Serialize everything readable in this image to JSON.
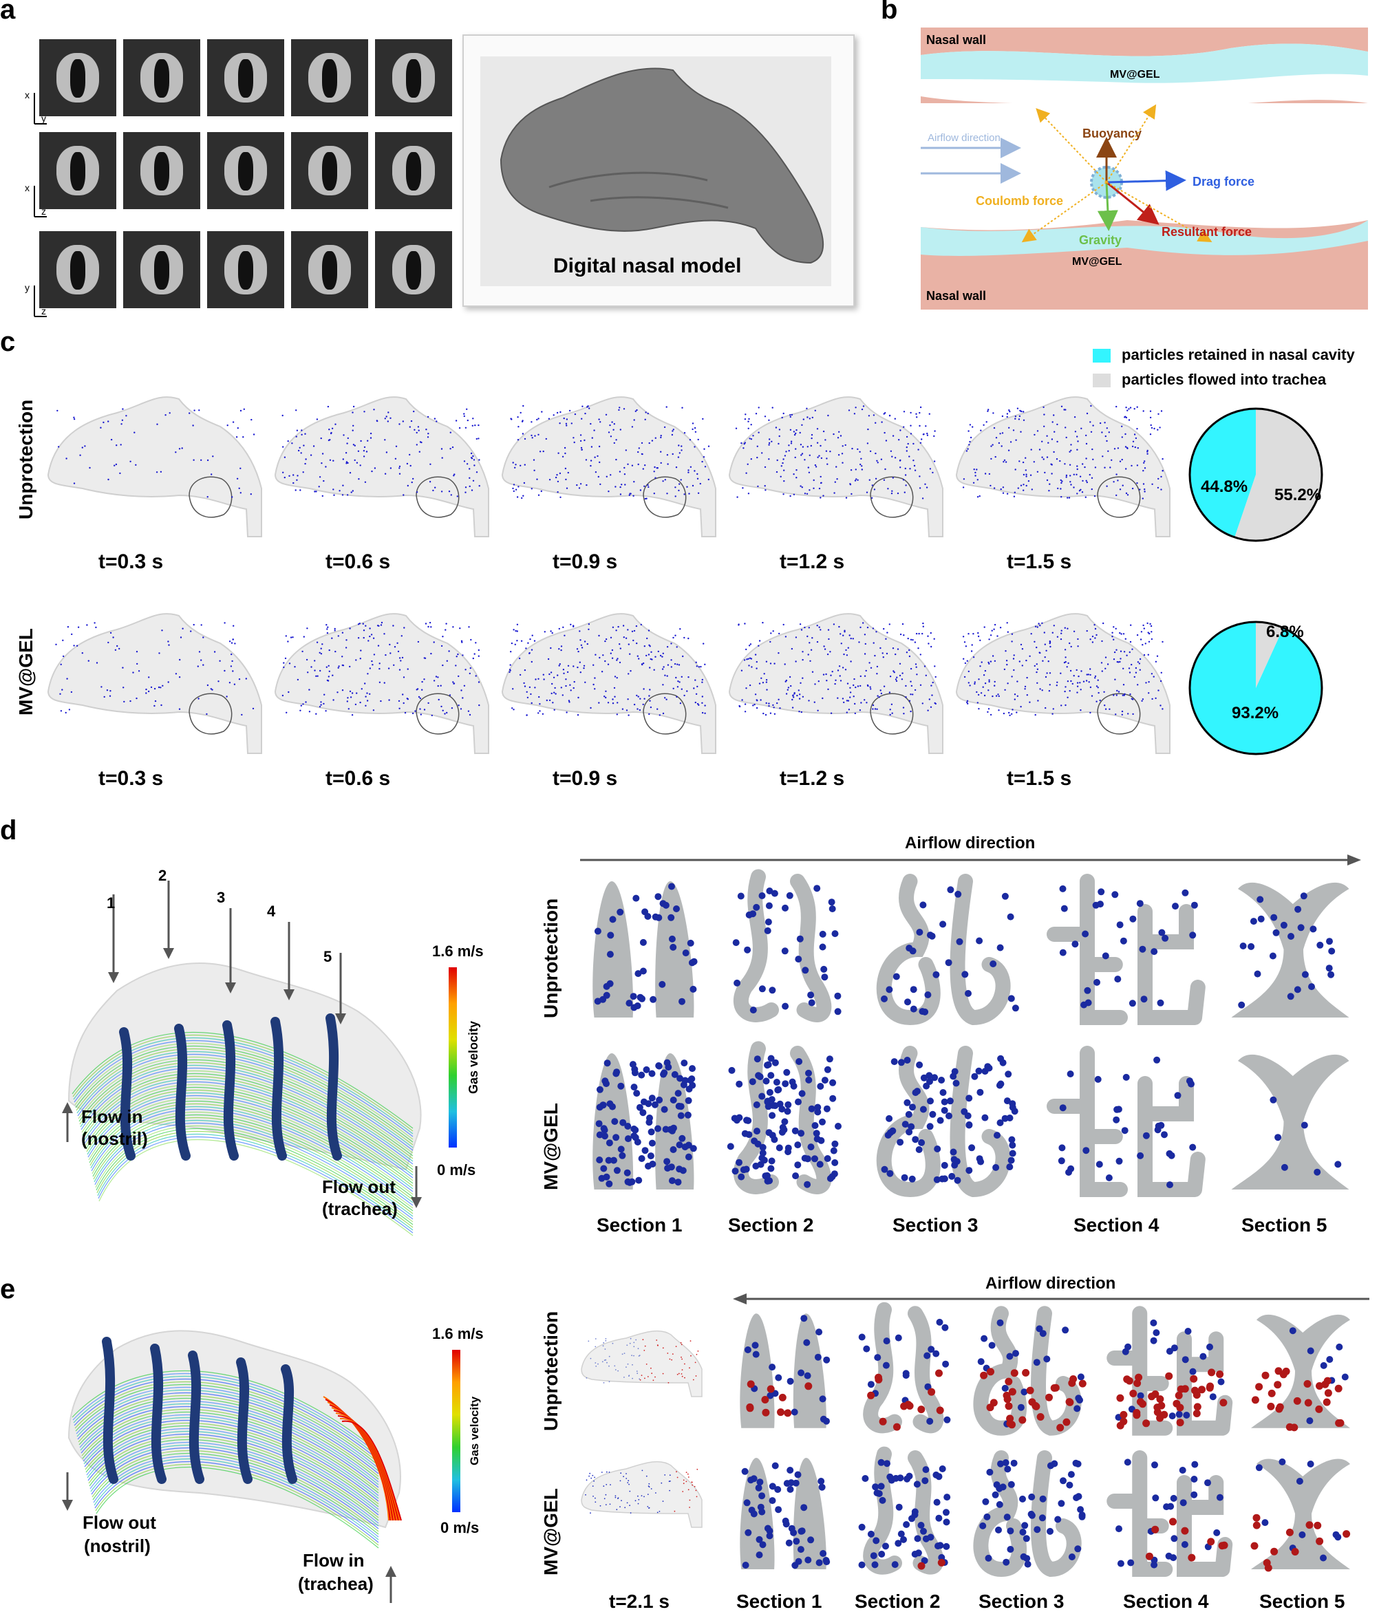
{
  "panels": {
    "a": {
      "letter": "a",
      "model_label": "Digital nasal model",
      "axes": [
        [
          "x",
          "y"
        ],
        [
          "x",
          "z"
        ],
        [
          "y",
          "z"
        ]
      ]
    },
    "b": {
      "letter": "b",
      "nasal_wall_top": "Nasal wall",
      "nasal_wall_bottom": "Nasal wall",
      "gel_top": "MV@GEL",
      "gel_bottom": "MV@GEL",
      "airflow": "Airflow direction",
      "buoyancy": "Buoyancy",
      "drag": "Drag force",
      "coulomb": "Coulomb force",
      "gravity": "Gravity",
      "resultant": "Resultant force",
      "colors": {
        "wall": "#e8b3a8",
        "gel": "#bdeff2",
        "buoyancy": "#8b4513",
        "drag": "#2f5fe0",
        "coulomb": "#f0b020",
        "gravity": "#6cc04a",
        "resultant": "#c0201a",
        "airflow": "#9fb8dd"
      }
    },
    "c": {
      "letter": "c",
      "legend": {
        "retained": "particles retained in nasal cavity",
        "trachea": "particles flowed into trachea",
        "retained_color": "#33f5ff",
        "trachea_color": "#dddddd"
      },
      "rows": [
        {
          "label": "Unprotection",
          "times": [
            "t=0.3 s",
            "t=0.6 s",
            "t=0.9 s",
            "t=1.2 s",
            "t=1.5 s"
          ],
          "pie_retained_label": "44.8%",
          "pie_trachea_label": "55.2%"
        },
        {
          "label": "MV@GEL",
          "times": [
            "t=0.3 s",
            "t=0.6 s",
            "t=0.9 s",
            "t=1.2 s",
            "t=1.5 s"
          ],
          "pie_retained_label": "93.2%",
          "pie_trachea_label": "6.8%"
        }
      ]
    },
    "d": {
      "letter": "d",
      "arrows": [
        "1",
        "2",
        "3",
        "4",
        "5"
      ],
      "scale_max": "1.6 m/s",
      "scale_min": "0 m/s",
      "scale_title": "Gas velocity",
      "flow_in": "Flow in",
      "flow_in_sub": "(nostril)",
      "flow_out": "Flow out",
      "flow_out_sub": "(trachea)",
      "airflow": "Airflow direction",
      "row1": "Unprotection",
      "row2": "MV@GEL",
      "sections": [
        "Section 1",
        "Section 2",
        "Section 3",
        "Section 4",
        "Section 5"
      ]
    },
    "e": {
      "letter": "e",
      "scale_max": "1.6 m/s",
      "scale_min": "0 m/s",
      "scale_title": "Gas velocity",
      "flow_out": "Flow out",
      "flow_out_sub": "(nostril)",
      "flow_in": "Flow in",
      "flow_in_sub": "(trachea)",
      "airflow": "Airflow direction",
      "row1": "Unprotection",
      "row2": "MV@GEL",
      "time": "t=2.1 s",
      "sections": [
        "Section 1",
        "Section 2",
        "Section 3",
        "Section 4",
        "Section 5"
      ]
    }
  },
  "chart_data": [
    {
      "type": "pie",
      "title": "",
      "categories": [
        "particles retained in nasal cavity",
        "particles flowed into trachea"
      ],
      "values": [
        44.8,
        55.2
      ]
    },
    {
      "type": "pie",
      "title": "",
      "categories": [
        "particles retained in nasal cavity",
        "particles flowed into trachea"
      ],
      "values": [
        93.2,
        6.8
      ]
    }
  ]
}
